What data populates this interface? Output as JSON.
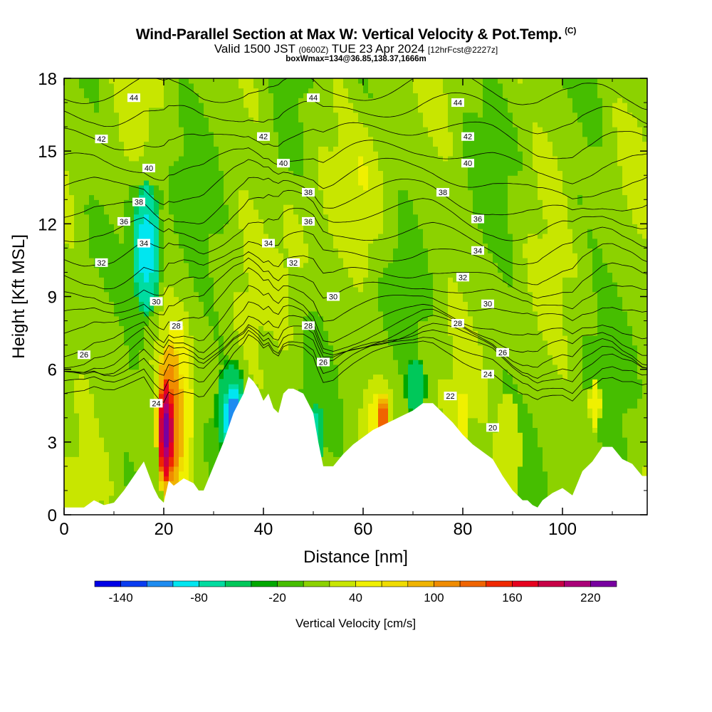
{
  "header": {
    "title": "Wind-Parallel Section at Max W: Vertical Velocity & Pot.Temp.",
    "copyright": "(C)",
    "subtitle_main_a": "Valid 1500 JST",
    "subtitle_small_a": "(0600Z)",
    "subtitle_main_b": "TUE 23 Apr 2024",
    "subtitle_small_b": "[12hrFcst@2227z]",
    "info": "boxWmax=134@36.85,138.37,1666m"
  },
  "chart_data": {
    "type": "heatmap",
    "xlabel": "Distance [nm]",
    "ylabel": "Height [Kft MSL]",
    "xlim": [
      0,
      117
    ],
    "ylim": [
      0,
      18
    ],
    "x_ticks": [
      "0",
      "20",
      "40",
      "60",
      "80",
      "100"
    ],
    "x_tick_values": [
      0,
      20,
      40,
      60,
      80,
      100
    ],
    "y_ticks": [
      "0",
      "3",
      "6",
      "9",
      "12",
      "15",
      "18"
    ],
    "y_tick_values": [
      0,
      3,
      6,
      9,
      12,
      15,
      18
    ],
    "colorbar": {
      "label": "Vertical Velocity [cm/s]",
      "tick_labels": [
        "-140",
        "-80",
        "-20",
        "40",
        "100",
        "160",
        "220"
      ],
      "tick_values": [
        -140,
        -80,
        -20,
        40,
        100,
        160,
        220
      ],
      "bins": [
        -160,
        -140,
        -120,
        -100,
        -80,
        -60,
        -40,
        -20,
        0,
        20,
        40,
        60,
        80,
        100,
        120,
        140,
        160,
        180,
        200,
        220,
        240
      ],
      "colors": [
        "#0000e6",
        "#0a3cf0",
        "#1e8cf0",
        "#00e6f0",
        "#00dca0",
        "#00c85a",
        "#00a800",
        "#46be00",
        "#8cd200",
        "#c8e600",
        "#f0f000",
        "#f0dc00",
        "#f0b400",
        "#f08c00",
        "#f06400",
        "#f02800",
        "#e6001e",
        "#c80046",
        "#aa0078",
        "#7800a0"
      ]
    },
    "terrain": {
      "description": "surface height profile (kft) along distance (nm)",
      "x": [
        0,
        4,
        6,
        8,
        10,
        12,
        14,
        16,
        18,
        19,
        20,
        21,
        22,
        24,
        26,
        27,
        28,
        30,
        32,
        34,
        36,
        37,
        38,
        39,
        40,
        41,
        42,
        43,
        44,
        45,
        46,
        48,
        50,
        51,
        52,
        54,
        56,
        58,
        60,
        62,
        64,
        66,
        68,
        70,
        72,
        74,
        76,
        78,
        80,
        82,
        84,
        86,
        88,
        90,
        92,
        93,
        94,
        95,
        96,
        98,
        100,
        102,
        104,
        106,
        108,
        110,
        112,
        114,
        116,
        117
      ],
      "y": [
        0.3,
        0.3,
        0.6,
        0.4,
        0.5,
        1.0,
        1.6,
        2.2,
        1.1,
        0.7,
        0.5,
        1.4,
        1.2,
        1.5,
        1.3,
        1.0,
        1.0,
        2.0,
        3.0,
        4.2,
        5.0,
        5.7,
        5.5,
        5.2,
        4.7,
        5.0,
        4.4,
        4.2,
        5.0,
        5.2,
        5.2,
        5.0,
        4.2,
        3.0,
        2.0,
        2.0,
        2.5,
        2.9,
        3.2,
        3.5,
        3.7,
        3.9,
        4.1,
        4.3,
        4.6,
        4.6,
        4.2,
        3.8,
        3.3,
        2.9,
        2.6,
        2.3,
        1.6,
        1.0,
        0.6,
        0.6,
        0.4,
        0.3,
        0.6,
        0.9,
        1.1,
        0.8,
        1.8,
        2.2,
        2.8,
        2.8,
        2.3,
        2.1,
        1.6,
        1.6
      ]
    },
    "w_features": [
      {
        "x": 20.5,
        "y": 3.5,
        "rx": 1.5,
        "ry": 2.2,
        "value": 230
      },
      {
        "x": 21.2,
        "y": 3.8,
        "rx": 2.8,
        "ry": 3.4,
        "value": 130
      },
      {
        "x": 22.5,
        "y": 4.2,
        "rx": 4.0,
        "ry": 4.8,
        "value": 55
      },
      {
        "x": 20.5,
        "y": 6.0,
        "rx": 3.0,
        "ry": 3.8,
        "value": 35
      },
      {
        "x": 16.5,
        "y": 11.0,
        "rx": 2.8,
        "ry": 2.8,
        "value": -60
      },
      {
        "x": 16.5,
        "y": 11.0,
        "rx": 4.5,
        "ry": 4.8,
        "value": -30
      },
      {
        "x": 34.0,
        "y": 4.0,
        "rx": 2.0,
        "ry": 1.4,
        "value": -120
      },
      {
        "x": 33.5,
        "y": 4.3,
        "rx": 3.2,
        "ry": 2.2,
        "value": -60
      },
      {
        "x": 14.0,
        "y": 16.5,
        "rx": 3.0,
        "ry": 2.0,
        "value": 40
      },
      {
        "x": 50.5,
        "y": 3.4,
        "rx": 1.5,
        "ry": 1.3,
        "value": -70
      },
      {
        "x": 64.0,
        "y": 3.8,
        "rx": 1.4,
        "ry": 1.2,
        "value": 140
      },
      {
        "x": 63.0,
        "y": 3.3,
        "rx": 3.5,
        "ry": 2.6,
        "value": 50
      },
      {
        "x": 70.5,
        "y": 5.3,
        "rx": 2.2,
        "ry": 1.2,
        "value": -60
      },
      {
        "x": 80.0,
        "y": 4.1,
        "rx": 1.5,
        "ry": 1.1,
        "value": 60
      },
      {
        "x": 89.0,
        "y": 2.7,
        "rx": 2.6,
        "ry": 2.4,
        "value": 40
      },
      {
        "x": 106.5,
        "y": 4.6,
        "rx": 1.2,
        "ry": 1.1,
        "value": 60
      },
      {
        "x": 61.5,
        "y": 13.0,
        "rx": 7.0,
        "ry": 4.0,
        "value": 20
      },
      {
        "x": 46.0,
        "y": 10.0,
        "rx": 5.0,
        "ry": 5.0,
        "value": 15
      },
      {
        "x": 8.0,
        "y": 7.5,
        "rx": 6.0,
        "ry": 3.5,
        "value": 20
      },
      {
        "x": 99.0,
        "y": 15.0,
        "rx": 6.0,
        "ry": 3.0,
        "value": 15
      },
      {
        "x": 40.0,
        "y": 17.0,
        "rx": 6.0,
        "ry": 2.0,
        "value": 15
      }
    ],
    "isentropes": {
      "base_height": [
        4.6,
        5.0,
        5.4,
        5.6,
        5.9,
        6.3,
        6.8,
        7.6,
        8.3,
        9.0,
        9.8,
        10.7,
        11.6,
        12.4,
        13.3,
        14.2,
        15.2,
        16.2,
        17.2
      ],
      "labels": [
        {
          "text": "44",
          "x": 14.0,
          "y": 17.2
        },
        {
          "text": "44",
          "x": 50.0,
          "y": 17.2
        },
        {
          "text": "44",
          "x": 79.0,
          "y": 17.0
        },
        {
          "text": "42",
          "x": 7.5,
          "y": 15.5
        },
        {
          "text": "42",
          "x": 40.0,
          "y": 15.6
        },
        {
          "text": "42",
          "x": 81.0,
          "y": 15.6
        },
        {
          "text": "40",
          "x": 17.0,
          "y": 14.3
        },
        {
          "text": "40",
          "x": 44.0,
          "y": 14.5
        },
        {
          "text": "40",
          "x": 81.0,
          "y": 14.5
        },
        {
          "text": "38",
          "x": 15.0,
          "y": 12.9
        },
        {
          "text": "38",
          "x": 49.0,
          "y": 13.3
        },
        {
          "text": "38",
          "x": 76.0,
          "y": 13.3
        },
        {
          "text": "36",
          "x": 12.0,
          "y": 12.1
        },
        {
          "text": "36",
          "x": 49.0,
          "y": 12.1
        },
        {
          "text": "36",
          "x": 83.0,
          "y": 12.2
        },
        {
          "text": "34",
          "x": 16.0,
          "y": 11.2
        },
        {
          "text": "34",
          "x": 41.0,
          "y": 11.2
        },
        {
          "text": "34",
          "x": 83.0,
          "y": 10.9
        },
        {
          "text": "32",
          "x": 7.5,
          "y": 10.4
        },
        {
          "text": "32",
          "x": 46.0,
          "y": 10.4
        },
        {
          "text": "32",
          "x": 80.0,
          "y": 9.8
        },
        {
          "text": "30",
          "x": 18.5,
          "y": 8.8
        },
        {
          "text": "30",
          "x": 54.0,
          "y": 9.0
        },
        {
          "text": "30",
          "x": 85.0,
          "y": 8.7
        },
        {
          "text": "28",
          "x": 22.5,
          "y": 7.8
        },
        {
          "text": "28",
          "x": 49.0,
          "y": 7.8
        },
        {
          "text": "28",
          "x": 79.0,
          "y": 7.9
        },
        {
          "text": "26",
          "x": 4.0,
          "y": 6.6
        },
        {
          "text": "26",
          "x": 52.0,
          "y": 6.3
        },
        {
          "text": "26",
          "x": 88.0,
          "y": 6.7
        },
        {
          "text": "24",
          "x": 18.5,
          "y": 4.6
        },
        {
          "text": "24",
          "x": 85.0,
          "y": 5.8
        },
        {
          "text": "22",
          "x": 77.5,
          "y": 4.9
        },
        {
          "text": "20",
          "x": 86.0,
          "y": 3.6
        }
      ]
    }
  }
}
